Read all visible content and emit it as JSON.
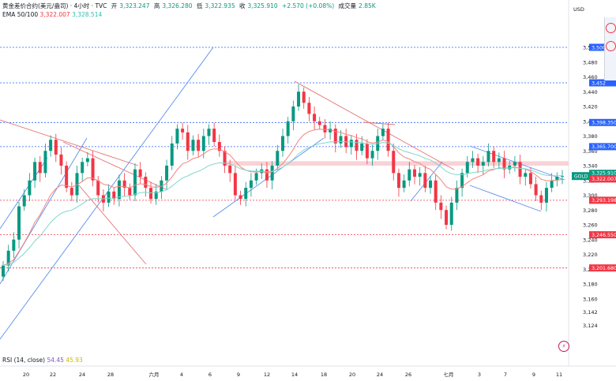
{
  "header": {
    "instrument": "黄金差价合约(美元/盎司) · 4小时 · TVC",
    "open_label": "开",
    "open": "3,323.247",
    "high_label": "高",
    "high": "3,326.280",
    "low_label": "低",
    "low": "3,322.935",
    "close_label": "收",
    "close": "3,325.910",
    "change": "+2.570 (+0.08%)",
    "volume_label": "成交量",
    "volume": "2.85K",
    "ema_label": "EMA 50/100",
    "ema50": "3,322.007",
    "ema100": "3,328.514"
  },
  "rsi": {
    "label": "RSI (14, close)",
    "v1": "54.45",
    "v2": "45.93"
  },
  "currency": "USD",
  "colors": {
    "up": "#089981",
    "down": "#f23645",
    "ema50": "#f4847f",
    "ema100": "#7fd8cc",
    "blue_line": "#5b8def",
    "red_line": "#e57373"
  },
  "chart_data": {
    "type": "candlestick",
    "symbol_tag": "GOLD",
    "price_axis": {
      "ticks": [
        "3,500",
        "3,480",
        "3,460",
        "3,440",
        "3,420",
        "3,400",
        "3,380",
        "3,360",
        "3,340",
        "3,320",
        "3,300",
        "3,280",
        "3,260",
        "3,240",
        "3,220",
        "3,200",
        "3,180",
        "3,160",
        "3,142",
        "3,124"
      ]
    },
    "time_axis": {
      "ticks": [
        "20",
        "22",
        "24",
        "28",
        "六月",
        "4",
        "6",
        "9",
        "12",
        "14",
        "18",
        "20",
        "24",
        "26",
        "七月",
        "3",
        "7",
        "9",
        "11"
      ]
    },
    "price_labels": [
      {
        "value": "3,500",
        "kind": "blue"
      },
      {
        "value": "3,452",
        "kind": "blue"
      },
      {
        "value": "3,398.350",
        "kind": "blue"
      },
      {
        "value": "3,365.700",
        "kind": "blue"
      },
      {
        "value": "3,328.514",
        "kind": "teal"
      },
      {
        "value": "3,325.910",
        "kind": "current",
        "countdown": "03:53:39"
      },
      {
        "value": "3,322.007",
        "kind": "red"
      },
      {
        "value": "3,293.198",
        "kind": "red"
      },
      {
        "value": "3,246.550",
        "kind": "red"
      },
      {
        "value": "3,201.680",
        "kind": "red"
      }
    ],
    "horizontal_levels": [
      {
        "price": 3500,
        "color": "#2962ff"
      },
      {
        "price": 3452,
        "color": "#2962ff"
      },
      {
        "price": 3398.35,
        "color": "#2962ff"
      },
      {
        "price": 3365.7,
        "color": "#2962ff"
      },
      {
        "price": 3293.198,
        "color": "#f23645"
      },
      {
        "price": 3246.55,
        "color": "#f23645"
      },
      {
        "price": 3201.68,
        "color": "#f23645"
      }
    ],
    "resistance_zone": [
      3340,
      3346
    ],
    "closes": [
      3205,
      3225,
      3240,
      3285,
      3300,
      3320,
      3345,
      3330,
      3360,
      3375,
      3355,
      3340,
      3310,
      3300,
      3330,
      3345,
      3350,
      3320,
      3300,
      3290,
      3305,
      3295,
      3320,
      3310,
      3300,
      3335,
      3325,
      3310,
      3295,
      3305,
      3320,
      3340,
      3370,
      3390,
      3385,
      3360,
      3375,
      3360,
      3380,
      3390,
      3372,
      3360,
      3340,
      3330,
      3300,
      3295,
      3310,
      3320,
      3330,
      3335,
      3320,
      3340,
      3360,
      3380,
      3400,
      3420,
      3440,
      3425,
      3410,
      3400,
      3395,
      3385,
      3390,
      3370,
      3380,
      3365,
      3375,
      3360,
      3370,
      3350,
      3360,
      3380,
      3390,
      3360,
      3330,
      3310,
      3320,
      3335,
      3325,
      3330,
      3310,
      3320,
      3290,
      3280,
      3260,
      3290,
      3310,
      3330,
      3345,
      3350,
      3340,
      3345,
      3360,
      3345,
      3350,
      3335,
      3340,
      3345,
      3325,
      3330,
      3315,
      3300,
      3290,
      3310,
      3320,
      3325,
      3326
    ],
    "ema50_last": 3322.007,
    "ema100_last": 3328.514,
    "rsi": [
      54.45,
      45.93
    ]
  }
}
